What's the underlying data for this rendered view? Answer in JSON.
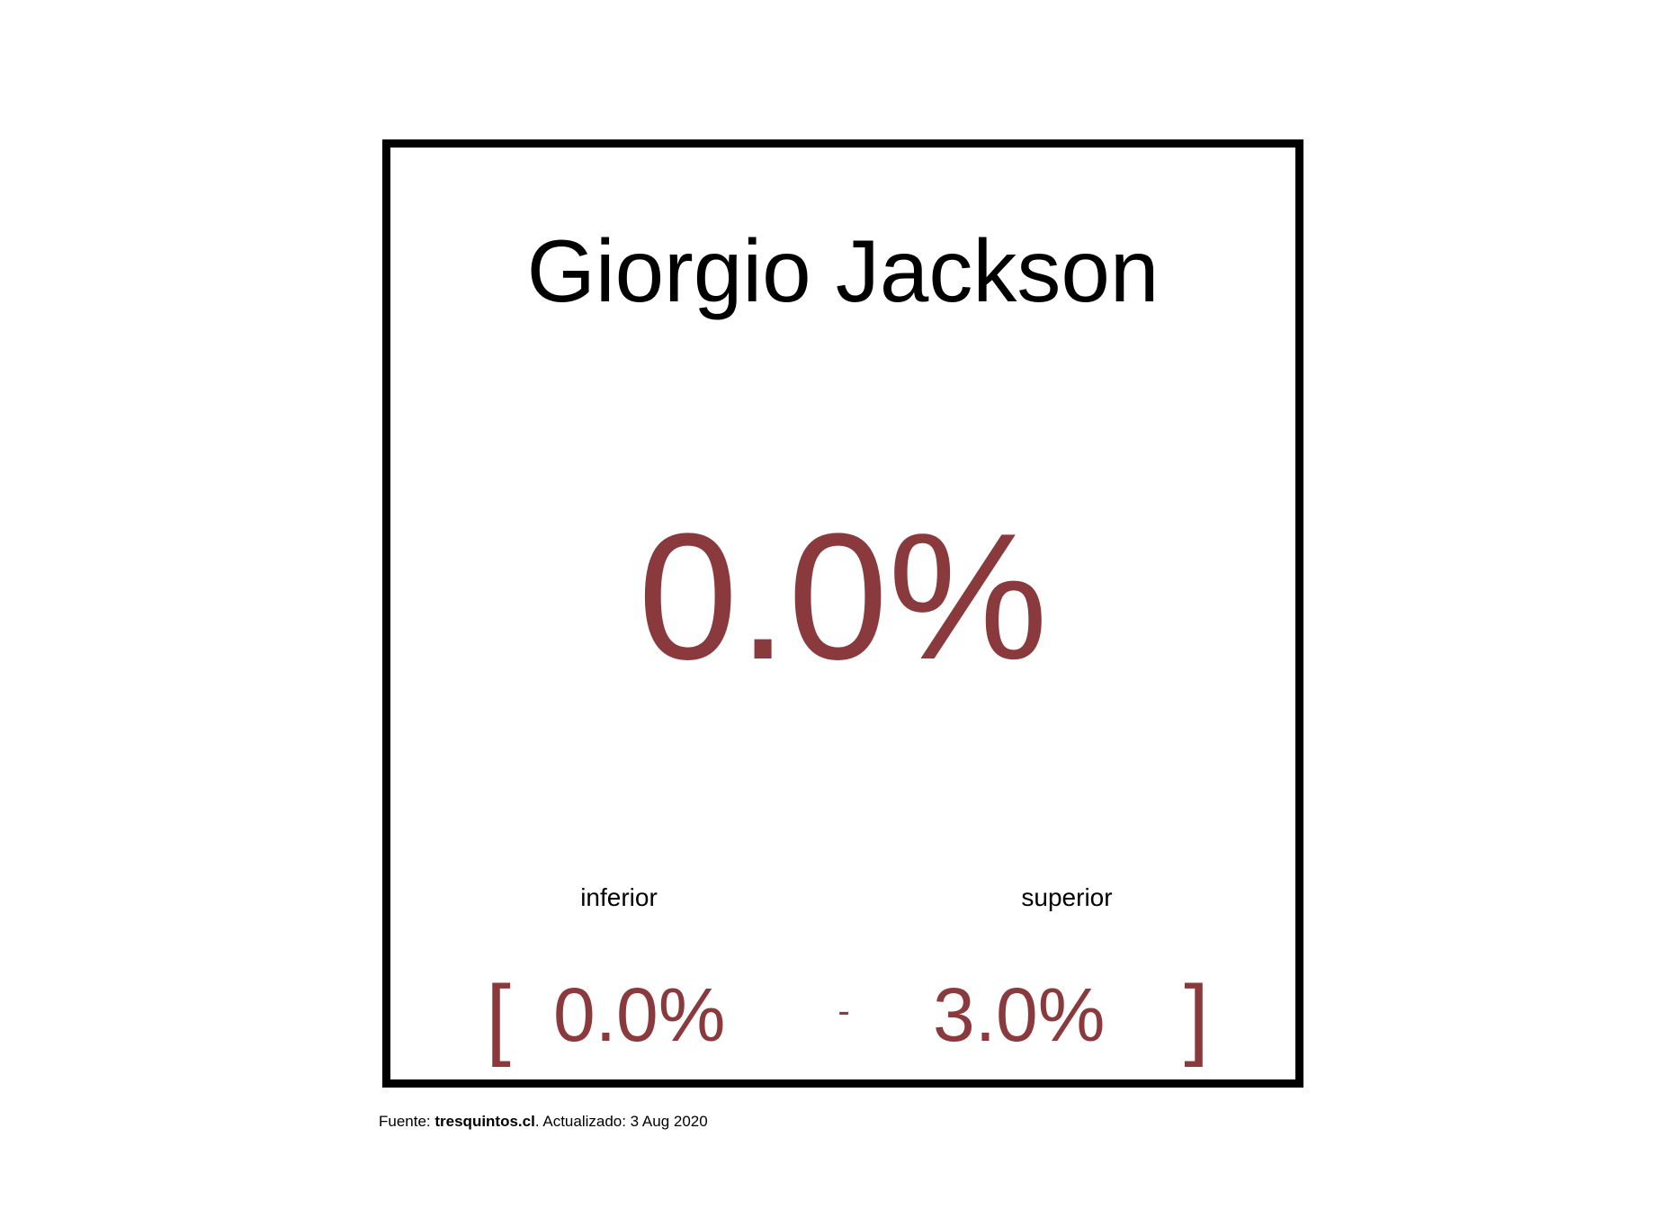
{
  "card": {
    "name": "Giorgio Jackson",
    "value": "0.0%",
    "lower_label": "inferior",
    "upper_label": "superior",
    "open_bracket": "[",
    "lower_value": "0.0%",
    "separator": "-",
    "upper_value": "3.0%",
    "close_bracket": "]"
  },
  "footer": {
    "source_prefix": "Fuente: ",
    "source_name": "tresquintos.cl",
    "updated_text": ". Actualizado: 3 Aug 2020"
  },
  "colors": {
    "accent": "#8a393d",
    "border": "#000000",
    "text": "#000000",
    "background": "#ffffff"
  }
}
